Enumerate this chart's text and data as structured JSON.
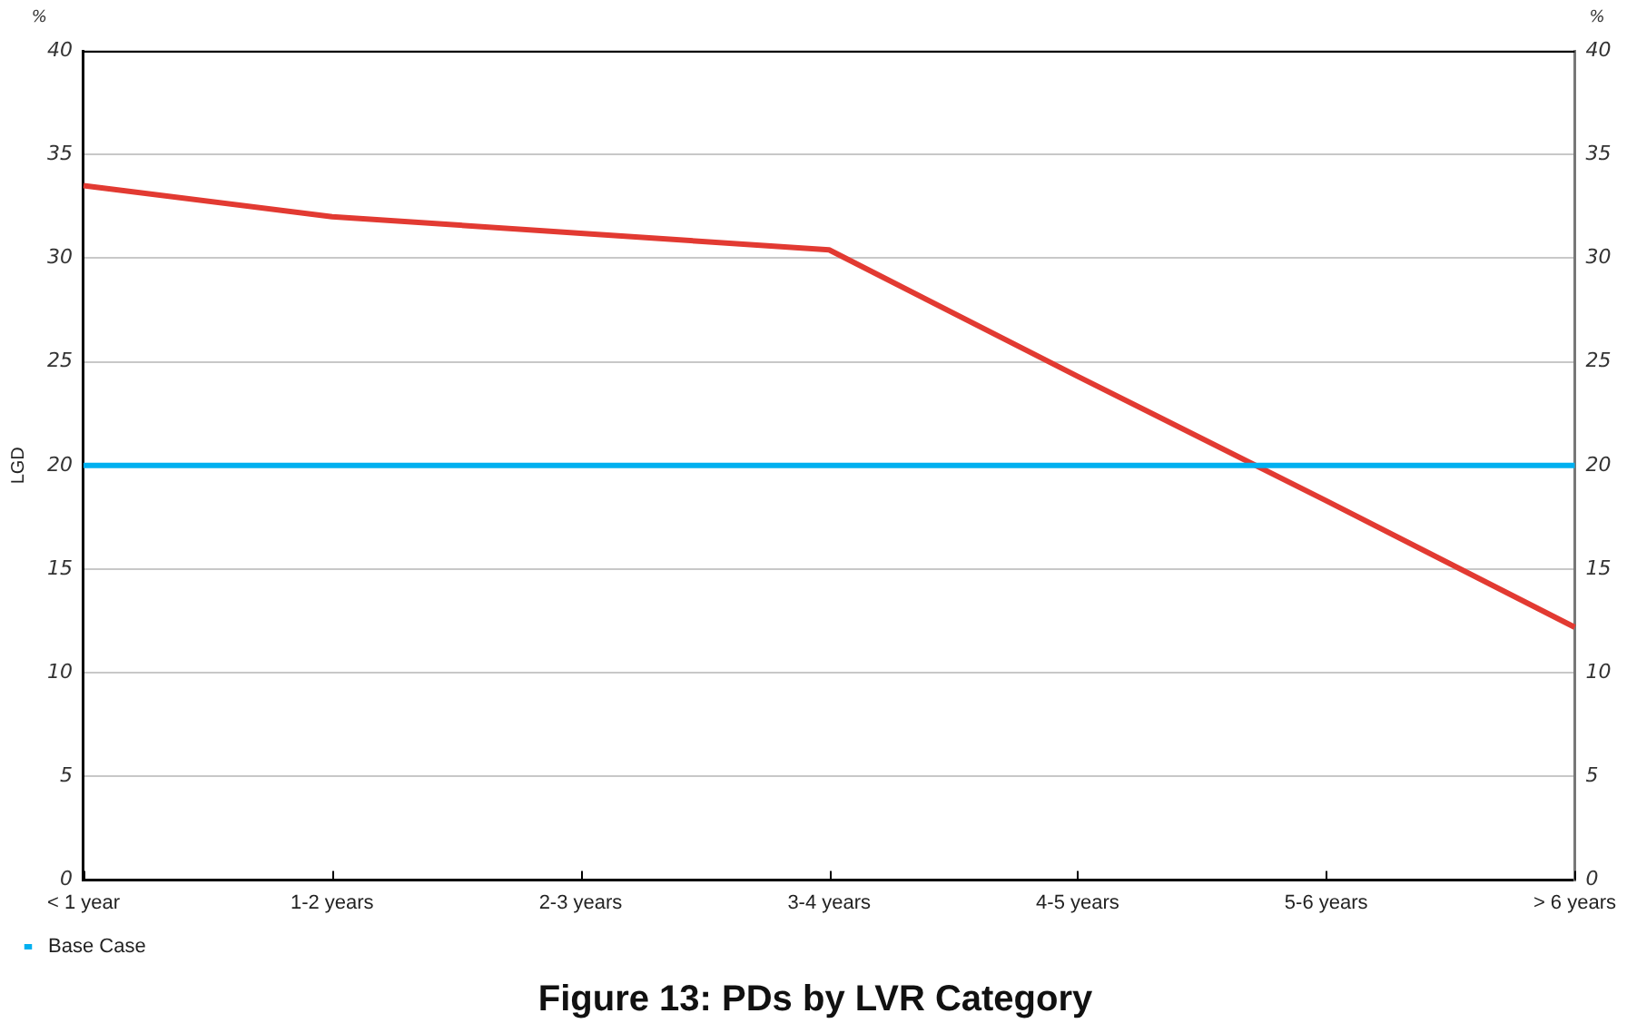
{
  "chart_data": {
    "type": "line",
    "title": "Figure 13: PDs by LVR Category",
    "ylabel": "LGD",
    "annotations": [
      "%",
      "%"
    ],
    "categories": [
      "< 1 year",
      "1-2 years",
      "2-3 years",
      "3-4 years",
      "4-5 years",
      "5-6 years",
      "> 6 years"
    ],
    "series": [
      {
        "name": "Base Case",
        "color": "#00b0f0",
        "values": [
          20,
          20,
          20,
          20,
          20,
          20,
          20
        ]
      },
      {
        "color": "#e23a32",
        "values": [
          33.5,
          32.0,
          31.2,
          30.4,
          24.3,
          18.3,
          12.2
        ]
      }
    ],
    "ylim": [
      0,
      40
    ],
    "yticks": [
      0,
      5,
      10,
      15,
      20,
      25,
      30,
      35,
      40
    ],
    "y2lim": [
      0,
      40
    ],
    "y2ticks": [
      0,
      5,
      10,
      15,
      20,
      25,
      30,
      35,
      40
    ],
    "grid": "y",
    "legend": "bottom left"
  }
}
